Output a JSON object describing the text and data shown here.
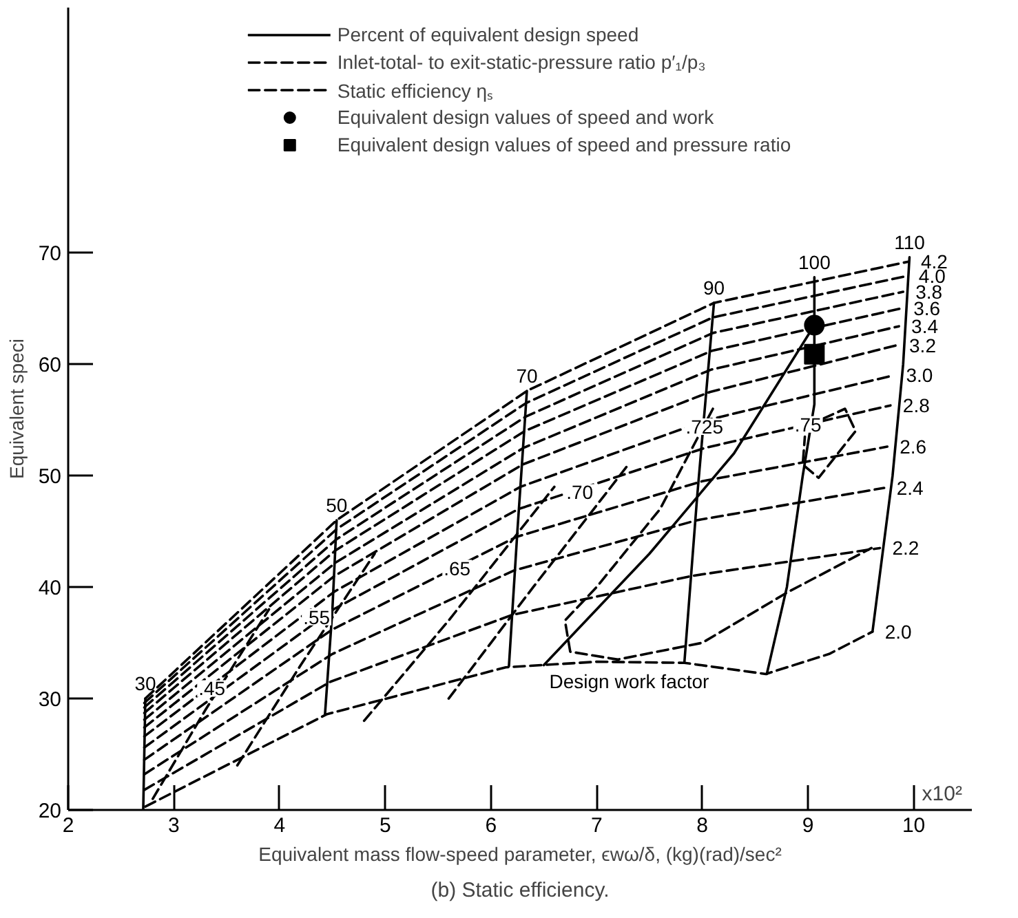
{
  "chart_data": {
    "type": "line",
    "title": "(b) Static efficiency.",
    "xlabel": "Equivalent mass flow-speed parameter, ϵwω/δ, (kg)(rad)/sec²",
    "ylabel": "Equivalent speci",
    "xlim": [
      2,
      10.55
    ],
    "ylim": [
      20,
      92
    ],
    "xticks": [
      2,
      3,
      4,
      5,
      6,
      7,
      8,
      9,
      10
    ],
    "yticks": [
      20,
      30,
      40,
      50,
      60,
      70
    ],
    "grid": false,
    "legend": "top",
    "series": [
      {
        "color": "#000000",
        "line_style": "solid",
        "x": [
          2.71,
          2.73
        ],
        "values": [
          20,
          30
        ]
      },
      {
        "color": "#000000",
        "line_style": "solid",
        "x": [
          4.43,
          4.5,
          4.54
        ],
        "values": [
          28.6,
          38,
          46
        ]
      },
      {
        "color": "#000000",
        "line_style": "solid",
        "x": [
          6.17,
          6.25,
          6.34
        ],
        "values": [
          32.9,
          45,
          57.6
        ]
      },
      {
        "color": "#000000",
        "line_style": "solid",
        "x": [
          7.83,
          7.95,
          8.11
        ],
        "values": [
          33.2,
          48,
          65.5
        ]
      },
      {
        "name": "Percent of equivalent design speed",
        "color": "#000000",
        "line_style": "solid",
        "x": [
          8.61,
          8.8,
          8.95,
          9.06,
          9.06
        ],
        "values": [
          32.2,
          40,
          50,
          56.4,
          67.8
        ]
      },
      {
        "color": "#000000",
        "line_style": "solid",
        "x": [
          9.61,
          9.8,
          9.9,
          9.96
        ],
        "values": [
          36,
          50,
          60,
          69.6
        ]
      },
      {
        "name": "Inlet-total- to exit-static-pressure ratio p′₁/p₃",
        "color": "#000000",
        "line_style": "dashed",
        "x": [
          2.73,
          4.45,
          6.14,
          7.0,
          7.83,
          8.6,
          9.2,
          9.61
        ],
        "values": [
          20.3,
          28.6,
          32.8,
          33.3,
          33.2,
          32.2,
          34,
          36
        ]
      },
      {
        "color": "#000000",
        "line_style": "dashed",
        "x": [
          2.72,
          4.48,
          6.2,
          7.9,
          9.68
        ],
        "values": [
          21.8,
          31.5,
          37.5,
          41,
          43.5
        ]
      },
      {
        "color": "#000000",
        "line_style": "dashed",
        "x": [
          2.72,
          4.5,
          6.22,
          7.95,
          9.72
        ],
        "values": [
          23.2,
          34,
          41.5,
          46,
          48.9
        ]
      },
      {
        "color": "#000000",
        "line_style": "dashed",
        "x": [
          2.72,
          4.5,
          6.24,
          8.0,
          9.75
        ],
        "values": [
          24.5,
          36.2,
          44.5,
          49.5,
          52.6
        ]
      },
      {
        "color": "#000000",
        "line_style": "dashed",
        "x": [
          2.72,
          4.51,
          6.26,
          8.03,
          9.78
        ],
        "values": [
          25.6,
          38,
          47,
          52.5,
          56.3
        ]
      },
      {
        "color": "#000000",
        "line_style": "dashed",
        "x": [
          2.72,
          4.52,
          6.28,
          8.05,
          9.81
        ],
        "values": [
          26.6,
          39.6,
          49,
          55,
          59
        ]
      },
      {
        "color": "#000000",
        "line_style": "dashed",
        "x": [
          2.72,
          4.52,
          6.3,
          8.07,
          9.84
        ],
        "values": [
          27.4,
          41,
          51,
          57.5,
          61.7
        ]
      },
      {
        "color": "#000000",
        "line_style": "dashed",
        "x": [
          2.72,
          4.53,
          6.31,
          8.08,
          9.86
        ],
        "values": [
          28.1,
          42.2,
          52.5,
          59.5,
          63.4
        ]
      },
      {
        "color": "#000000",
        "line_style": "dashed",
        "x": [
          2.72,
          4.53,
          6.32,
          8.09,
          9.88
        ],
        "values": [
          28.7,
          43.3,
          54,
          61.2,
          65
        ]
      },
      {
        "color": "#000000",
        "line_style": "dashed",
        "x": [
          2.72,
          4.54,
          6.33,
          8.1,
          9.9
        ],
        "values": [
          29.2,
          44.3,
          55.3,
          62.8,
          66.5
        ]
      },
      {
        "color": "#000000",
        "line_style": "dashed",
        "x": [
          2.72,
          4.54,
          6.33,
          8.1,
          9.93
        ],
        "values": [
          29.6,
          45.2,
          56.5,
          64.2,
          67.9
        ]
      },
      {
        "color": "#000000",
        "line_style": "dashed",
        "x": [
          2.73,
          4.54,
          6.34,
          8.11,
          9.95
        ],
        "values": [
          30,
          46,
          57.6,
          65.5,
          69.2
        ]
      },
      {
        "name": "Static efficiency ηₛ",
        "color": "#000000",
        "line_style": "dashed",
        "x": [
          2.8,
          3.3,
          3.9
        ],
        "values": [
          21,
          29,
          38
        ]
      },
      {
        "color": "#000000",
        "line_style": "dashed",
        "x": [
          3.6,
          4.2,
          4.9
        ],
        "values": [
          24,
          33,
          43
        ]
      },
      {
        "color": "#000000",
        "line_style": "dashed",
        "x": [
          4.8,
          5.6,
          6.6
        ],
        "values": [
          28,
          37,
          49
        ]
      },
      {
        "color": "#000000",
        "line_style": "dashed",
        "x": [
          5.6,
          6.4,
          7.3
        ],
        "values": [
          30,
          40,
          51
        ]
      },
      {
        "color": "#000000",
        "line_style": "dashed",
        "x": [
          8.1,
          7.6,
          7.0,
          6.7,
          6.75,
          7.2,
          8.0,
          8.8,
          9.6
        ],
        "values": [
          56,
          47,
          40,
          37,
          34.2,
          33.5,
          35,
          39.5,
          43.5
        ]
      },
      {
        "color": "#000000",
        "line_style": "dashed",
        "x": [
          9.0,
          9.35,
          9.45,
          9.1,
          8.95,
          8.97
        ],
        "values": [
          54.5,
          56,
          54,
          49.8,
          51,
          53.5
        ]
      },
      {
        "color": "#000000",
        "line_style": "solid",
        "x": [
          6.5,
          7.5,
          8.3,
          9.06
        ],
        "values": [
          33,
          43,
          52,
          63.5
        ]
      },
      {
        "type": "scatter",
        "marker": "circle",
        "name": "Equivalent design values of speed and work",
        "color": "#000000",
        "x": [
          9.06
        ],
        "values": [
          63.5
        ]
      },
      {
        "type": "scatter",
        "marker": "square",
        "name": "Equivalent design values of speed and pressure ratio",
        "color": "#000000",
        "x": [
          9.06
        ],
        "values": [
          60.9
        ]
      }
    ],
    "annotations": [
      {
        "text": "30",
        "x": 2.73,
        "y": 30
      },
      {
        "text": "50",
        "x": 4.54,
        "y": 46
      },
      {
        "text": "70",
        "x": 6.34,
        "y": 57.6
      },
      {
        "text": "90",
        "x": 8.11,
        "y": 65.5
      },
      {
        "text": "100",
        "x": 9.06,
        "y": 67.8
      },
      {
        "text": "110",
        "x": 9.96,
        "y": 69.6
      },
      {
        "text": ".45",
        "x": 3.36,
        "y": 30.9
      },
      {
        "text": ".55",
        "x": 4.35,
        "y": 37.3
      },
      {
        "text": ".65",
        "x": 5.68,
        "y": 41.7
      },
      {
        "text": ".70",
        "x": 6.84,
        "y": 48.5
      },
      {
        "text": ".725",
        "x": 8.02,
        "y": 54.4
      },
      {
        "text": ".75",
        "x": 9.0,
        "y": 54.6
      },
      {
        "text": "2.0",
        "x": 9.61,
        "y": 36
      },
      {
        "text": "2.2",
        "x": 9.68,
        "y": 43.5
      },
      {
        "text": "2.4",
        "x": 9.72,
        "y": 48.9
      },
      {
        "text": "2.6",
        "x": 9.75,
        "y": 52.6
      },
      {
        "text": "2.8",
        "x": 9.78,
        "y": 56.3
      },
      {
        "text": "3.0",
        "x": 9.81,
        "y": 59
      },
      {
        "text": "3.2",
        "x": 9.84,
        "y": 61.7
      },
      {
        "text": "3.4",
        "x": 9.86,
        "y": 63.4
      },
      {
        "text": "3.6",
        "x": 9.88,
        "y": 65
      },
      {
        "text": "3.8",
        "x": 9.9,
        "y": 66.5
      },
      {
        "text": "4.0",
        "x": 9.93,
        "y": 67.9
      },
      {
        "text": "4.2",
        "x": 9.95,
        "y": 69.2
      },
      {
        "text": "Design work factor",
        "x": 6.5,
        "y": 33
      },
      "x10²"
    ]
  }
}
